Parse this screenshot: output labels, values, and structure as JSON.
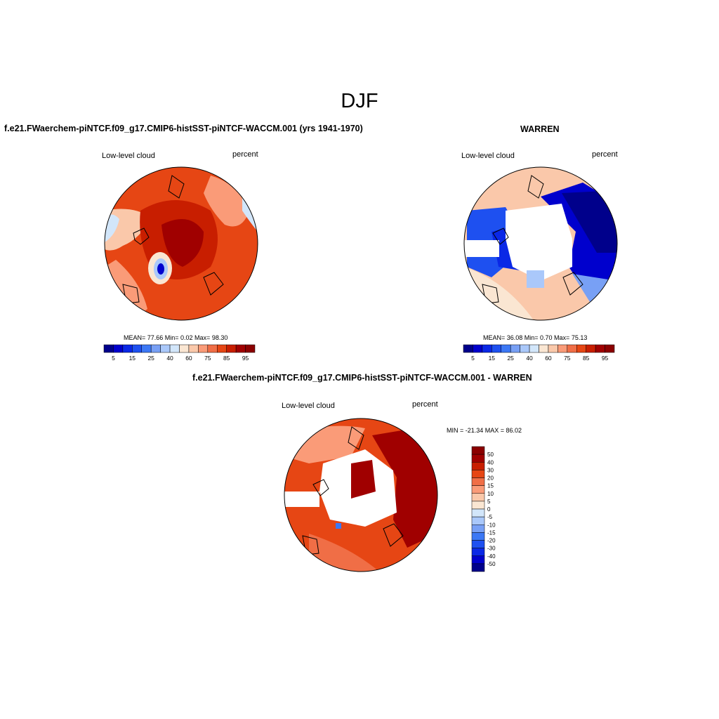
{
  "page_title": "DJF",
  "panels": {
    "model": {
      "title": "f.e21.FWaerchem-piNTCF.f09_g17.CMIP6-histSST-piNTCF-WACCM.001 (yrs 1941-1970)",
      "left_label": "Low-level cloud",
      "right_label": "percent",
      "stats": "MEAN=  77.66  Min=   0.02  Max=  98.30"
    },
    "obs": {
      "title": "WARREN",
      "left_label": "Low-level cloud",
      "right_label": "percent",
      "stats": "MEAN=  36.08  Min=   0.70  Max=  75.13"
    },
    "diff": {
      "title": "f.e21.FWaerchem-piNTCF.f09_g17.CMIP6-histSST-piNTCF-WACCM.001 - WARREN",
      "left_label": "Low-level cloud",
      "right_label": "percent",
      "stats": "MIN = -21.34 MAX =  86.02"
    }
  },
  "chart_data": [
    {
      "type": "heatmap",
      "title": "f.e21.FWaerchem-piNTCF.f09_g17.CMIP6-histSST-piNTCF-WACCM.001 (yrs 1941-1970)",
      "projection": "north-polar-stereographic",
      "variable": "Low-level cloud",
      "units": "percent",
      "mean": 77.66,
      "min": 0.02,
      "max": 98.3,
      "colorbar": {
        "orientation": "horizontal",
        "levels": [
          5,
          10,
          15,
          20,
          25,
          30,
          40,
          50,
          60,
          70,
          75,
          80,
          85,
          90,
          95
        ],
        "tick_labels": [
          "5",
          "15",
          "25",
          "40",
          "60",
          "75",
          "85",
          "95"
        ],
        "colors": [
          "#00008b",
          "#0000cd",
          "#0a28e6",
          "#1e50f0",
          "#3c78f5",
          "#78a0f5",
          "#aac8fa",
          "#d2e6fa",
          "#fae6d2",
          "#fac8aa",
          "#fa9b78",
          "#f06e46",
          "#e64614",
          "#c81e00",
          "#a00000",
          "#8b0000"
        ]
      }
    },
    {
      "type": "heatmap",
      "title": "WARREN",
      "projection": "north-polar-stereographic",
      "variable": "Low-level cloud",
      "units": "percent",
      "mean": 36.08,
      "min": 0.7,
      "max": 75.13,
      "colorbar": {
        "orientation": "horizontal",
        "levels": [
          5,
          10,
          15,
          20,
          25,
          30,
          40,
          50,
          60,
          70,
          75,
          80,
          85,
          90,
          95
        ],
        "tick_labels": [
          "5",
          "15",
          "25",
          "40",
          "60",
          "75",
          "85",
          "95"
        ],
        "colors": [
          "#00008b",
          "#0000cd",
          "#0a28e6",
          "#1e50f0",
          "#3c78f5",
          "#78a0f5",
          "#aac8fa",
          "#d2e6fa",
          "#fae6d2",
          "#fac8aa",
          "#fa9b78",
          "#f06e46",
          "#e64614",
          "#c81e00",
          "#a00000",
          "#8b0000"
        ]
      }
    },
    {
      "type": "heatmap",
      "title": "f.e21.FWaerchem-piNTCF.f09_g17.CMIP6-histSST-piNTCF-WACCM.001 - WARREN",
      "projection": "north-polar-stereographic",
      "variable": "Low-level cloud",
      "units": "percent",
      "min": -21.34,
      "max": 86.02,
      "colorbar": {
        "orientation": "vertical",
        "levels": [
          -50,
          -40,
          -30,
          -20,
          -15,
          -10,
          -5,
          0,
          5,
          10,
          15,
          20,
          30,
          40,
          50
        ],
        "tick_labels": [
          "50",
          "40",
          "30",
          "20",
          "15",
          "10",
          "5",
          "0",
          "-5",
          "-10",
          "-15",
          "-20",
          "-30",
          "-40",
          "-50"
        ],
        "colors": [
          "#00008b",
          "#0000cd",
          "#0a28e6",
          "#1e50f0",
          "#3c78f5",
          "#78a0f5",
          "#aac8fa",
          "#d2e6fa",
          "#fae6d2",
          "#fac8aa",
          "#fa9b78",
          "#f06e46",
          "#e64614",
          "#c81e00",
          "#a00000",
          "#8b0000"
        ]
      }
    }
  ]
}
